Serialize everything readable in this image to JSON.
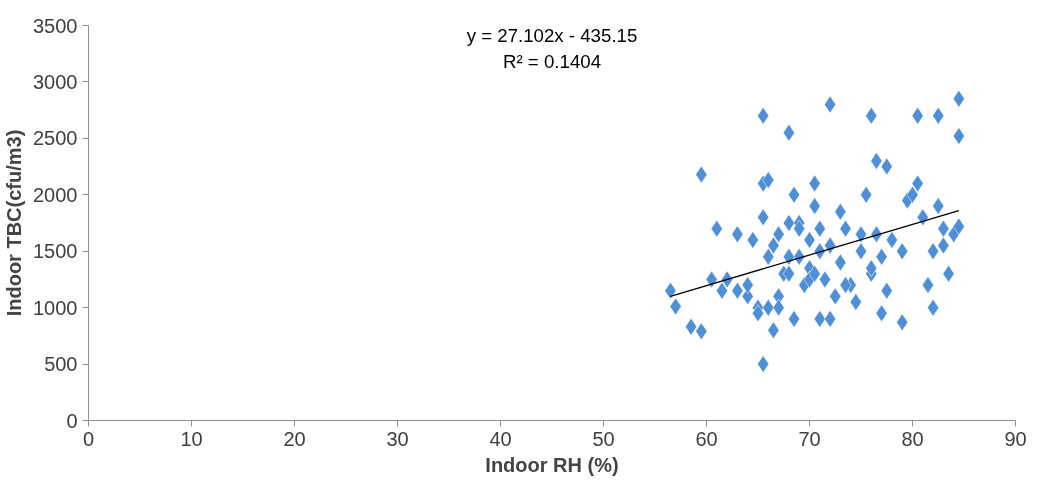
{
  "chart_data": {
    "type": "scatter",
    "xlabel": "Indoor RH (%)",
    "ylabel": "Indoor TBC(cfu/m3)",
    "annotations": [
      "y = 27.102x - 435.15",
      "R² = 0.1404"
    ],
    "xlim": [
      0,
      90
    ],
    "xticks": [
      0,
      10,
      20,
      30,
      40,
      50,
      60,
      70,
      80,
      90
    ],
    "ylim": [
      0,
      3500
    ],
    "yticks": [
      0,
      500,
      1000,
      1500,
      2000,
      2500,
      3000,
      3500
    ],
    "grid": false,
    "series": [
      {
        "color": "#4f8fd6",
        "marker": "diamond",
        "x": [
          56.5,
          57,
          58.5,
          59.5,
          59.5,
          60.5,
          61,
          61.5,
          62,
          63,
          64,
          64.5,
          65,
          65,
          65.5,
          65.5,
          65.5,
          65.5,
          66,
          66,
          66,
          66.5,
          67,
          67,
          67.5,
          68,
          68,
          68,
          68.5,
          68.5,
          69,
          69,
          69.5,
          70,
          70,
          70.5,
          70.5,
          71,
          71,
          71,
          71.5,
          72,
          72,
          72,
          72.5,
          73,
          73,
          73.5,
          74,
          74.5,
          75,
          75.5,
          76,
          76,
          76.5,
          76.5,
          77,
          77,
          77.5,
          77.5,
          78,
          79,
          79,
          79.5,
          80,
          80.5,
          80.5,
          81,
          81.5,
          82,
          82,
          82.5,
          82.5,
          83,
          83,
          83.5,
          84,
          84.5,
          84.5,
          84.5,
          69,
          70,
          67,
          66.5,
          64,
          63,
          74.5,
          75,
          76,
          73.5,
          72,
          70.5,
          68
        ],
        "values": [
          1150,
          1010,
          830,
          790,
          2180,
          1250,
          1700,
          1150,
          1250,
          1150,
          1100,
          1600,
          1000,
          950,
          1800,
          2100,
          2700,
          500,
          2130,
          1450,
          1000,
          800,
          1650,
          1100,
          1300,
          2550,
          1750,
          1300,
          900,
          2000,
          1750,
          1450,
          1200,
          1600,
          1350,
          2100,
          1900,
          1500,
          1700,
          900,
          1250,
          2800,
          1550,
          900,
          1100,
          1850,
          1400,
          1700,
          1200,
          1050,
          1500,
          2000,
          2700,
          1300,
          2300,
          1650,
          950,
          1450,
          2250,
          1150,
          1600,
          870,
          1500,
          1950,
          2000,
          2700,
          2100,
          1800,
          1200,
          1000,
          1500,
          1900,
          2700,
          1700,
          1550,
          1300,
          1650,
          2850,
          1720,
          2520,
          1700,
          1250,
          1000,
          1550,
          1200,
          1650,
          1050,
          1650,
          1350,
          1200,
          1550,
          1300,
          1450
        ]
      },
      {
        "type": "line",
        "color": "#000000",
        "marker": "none",
        "line_style": "solid",
        "x": [
          56.5,
          84.5
        ],
        "values": [
          1100,
          1860
        ]
      }
    ]
  }
}
